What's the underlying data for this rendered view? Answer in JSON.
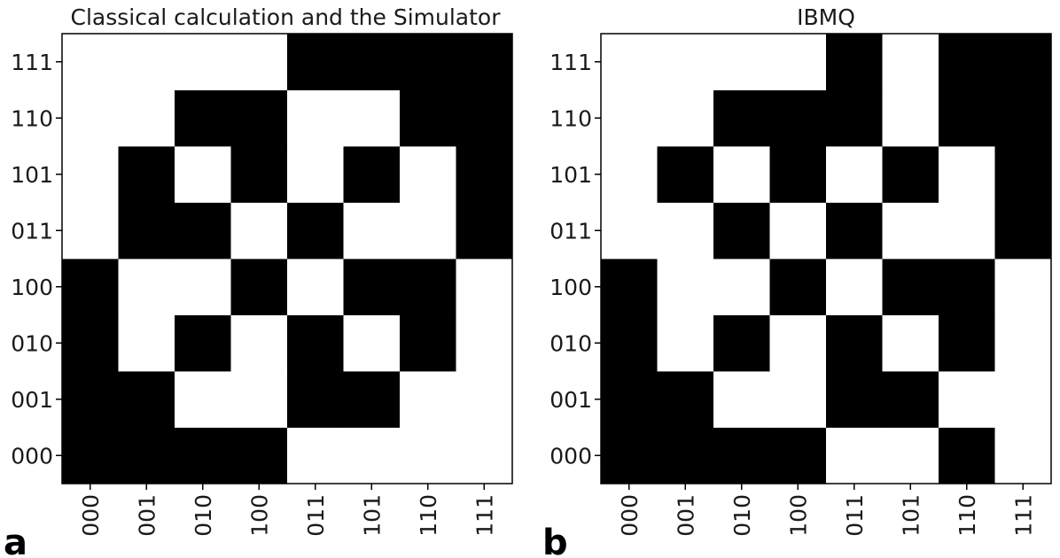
{
  "panels": [
    {
      "label": "a"
    },
    {
      "label": "b"
    }
  ],
  "chart_data": [
    {
      "type": "heatmap",
      "title": "Classical calculation and the Simulator",
      "x_categories": [
        "000",
        "001",
        "010",
        "100",
        "011",
        "101",
        "110",
        "111"
      ],
      "y_categories": [
        "000",
        "001",
        "010",
        "100",
        "011",
        "101",
        "110",
        "111"
      ],
      "y_order": "bottom-to-top",
      "colormap": {
        "0": "#ffffff",
        "1": "#000000"
      },
      "values": [
        [
          1,
          1,
          1,
          1,
          0,
          0,
          0,
          0
        ],
        [
          1,
          1,
          0,
          0,
          1,
          1,
          0,
          0
        ],
        [
          1,
          0,
          1,
          0,
          1,
          0,
          1,
          0
        ],
        [
          1,
          0,
          0,
          1,
          0,
          1,
          1,
          0
        ],
        [
          0,
          1,
          1,
          0,
          1,
          0,
          0,
          1
        ],
        [
          0,
          1,
          0,
          1,
          0,
          1,
          0,
          1
        ],
        [
          0,
          0,
          1,
          1,
          0,
          0,
          1,
          1
        ],
        [
          0,
          0,
          0,
          0,
          1,
          1,
          1,
          1
        ]
      ]
    },
    {
      "type": "heatmap",
      "title": "IBMQ",
      "x_categories": [
        "000",
        "001",
        "010",
        "100",
        "011",
        "101",
        "110",
        "111"
      ],
      "y_categories": [
        "000",
        "001",
        "010",
        "100",
        "011",
        "101",
        "110",
        "111"
      ],
      "y_order": "bottom-to-top",
      "colormap": {
        "0": "#ffffff",
        "1": "#000000"
      },
      "values": [
        [
          1,
          1,
          1,
          1,
          0,
          0,
          1,
          0
        ],
        [
          1,
          1,
          0,
          0,
          1,
          1,
          0,
          0
        ],
        [
          1,
          0,
          1,
          0,
          1,
          0,
          1,
          0
        ],
        [
          1,
          0,
          0,
          1,
          0,
          1,
          1,
          0
        ],
        [
          0,
          0,
          1,
          0,
          1,
          0,
          0,
          1
        ],
        [
          0,
          1,
          0,
          1,
          0,
          1,
          0,
          1
        ],
        [
          0,
          0,
          1,
          1,
          1,
          0,
          1,
          1
        ],
        [
          0,
          0,
          0,
          0,
          1,
          0,
          1,
          1
        ]
      ]
    }
  ]
}
